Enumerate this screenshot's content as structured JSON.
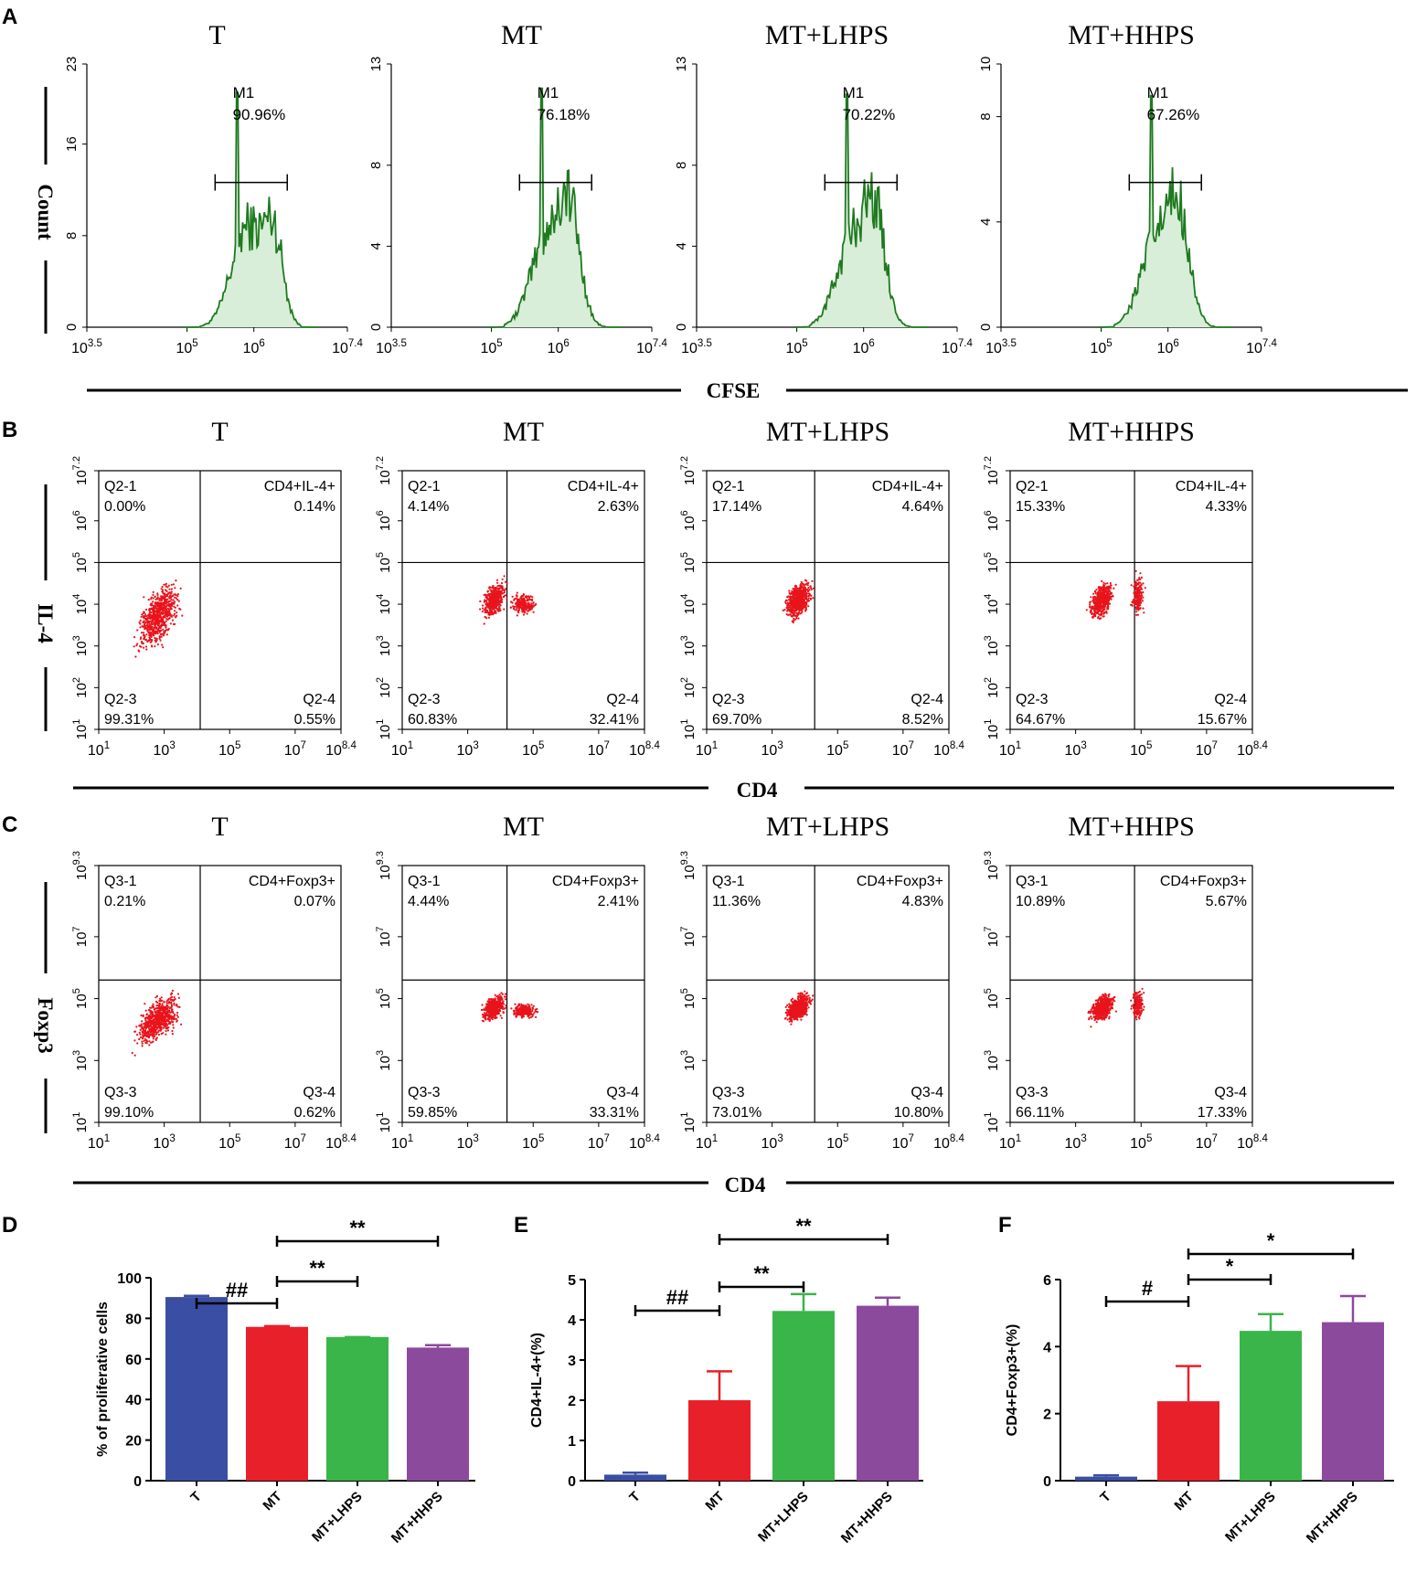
{
  "panel_letters": [
    "A",
    "B",
    "C",
    "D",
    "E",
    "F"
  ],
  "section_labels": {
    "A": "CFSE",
    "B": "CD4",
    "C": "CD4"
  },
  "side_labels": {
    "A": "Count",
    "B": "IL-4",
    "C": "Foxp3"
  },
  "colors": {
    "hist_line": "#1f7a1f",
    "hist_fill": "#d8eed8",
    "dots": "#e8141c",
    "bar_T": "#3a4fa3",
    "bar_MT": "#e8202a",
    "bar_LHPS": "#3ab54a",
    "bar_HHPS": "#8b4a9c"
  },
  "chart_data": [
    {
      "type": "histogram",
      "panel": "A",
      "groups": [
        {
          "title": "T",
          "gate": "M1",
          "percent": "90.96%",
          "yticks": [
            "0",
            "8",
            "16",
            "23"
          ],
          "ymax": 23,
          "peak": 20.5
        },
        {
          "title": "MT",
          "gate": "M1",
          "percent": "76.18%",
          "yticks": [
            "0",
            "4",
            "8",
            "13"
          ],
          "ymax": 13,
          "peak": 11.8
        },
        {
          "title": "MT+LHPS",
          "gate": "M1",
          "percent": "70.22%",
          "yticks": [
            "0",
            "4",
            "8",
            "13"
          ],
          "ymax": 13,
          "peak": 11.5
        },
        {
          "title": "MT+HHPS",
          "gate": "M1",
          "percent": "67.26%",
          "yticks": [
            "0",
            "4",
            "8",
            "10"
          ],
          "ymax": 10,
          "peak": 8.8
        }
      ],
      "xticks": [
        {
          "b": "10",
          "e": "3.5"
        },
        {
          "b": "10",
          "e": "5"
        },
        {
          "b": "10",
          "e": "6"
        },
        {
          "b": "10",
          "e": "7.4"
        }
      ],
      "xlabel": "CFSE",
      "ylabel": "Count"
    },
    {
      "type": "scatter",
      "panel": "B",
      "xlabel": "CD4",
      "ylabel": "IL-4",
      "yticks": [
        {
          "b": "10",
          "e": "1"
        },
        {
          "b": "10",
          "e": "2"
        },
        {
          "b": "10",
          "e": "3"
        },
        {
          "b": "10",
          "e": "4"
        },
        {
          "b": "10",
          "e": "5"
        },
        {
          "b": "10",
          "e": "6"
        },
        {
          "b": "10",
          "e": "7.2"
        }
      ],
      "xticks": [
        {
          "b": "10",
          "e": "1"
        },
        {
          "b": "10",
          "e": "3"
        },
        {
          "b": "10",
          "e": "5"
        },
        {
          "b": "10",
          "e": "7"
        },
        {
          "b": "10",
          "e": "8.4"
        }
      ],
      "groups": [
        {
          "title": "T",
          "q1": [
            "Q2-1",
            "0.00%"
          ],
          "q2": [
            "CD4+IL-4+",
            "0.14%"
          ],
          "q3": [
            "Q2-3",
            "99.31%"
          ],
          "q4": [
            "Q2-4",
            "0.55%"
          ]
        },
        {
          "title": "MT",
          "q1": [
            "Q2-1",
            "4.14%"
          ],
          "q2": [
            "CD4+IL-4+",
            "2.63%"
          ],
          "q3": [
            "Q2-3",
            "60.83%"
          ],
          "q4": [
            "Q2-4",
            "32.41%"
          ]
        },
        {
          "title": "MT+LHPS",
          "q1": [
            "Q2-1",
            "17.14%"
          ],
          "q2": [
            "CD4+IL-4+",
            "4.64%"
          ],
          "q3": [
            "Q2-3",
            "69.70%"
          ],
          "q4": [
            "Q2-4",
            "8.52%"
          ]
        },
        {
          "title": "MT+HHPS",
          "q1": [
            "Q2-1",
            "15.33%"
          ],
          "q2": [
            "CD4+IL-4+",
            "4.33%"
          ],
          "q3": [
            "Q2-3",
            "64.67%"
          ],
          "q4": [
            "Q2-4",
            "15.67%"
          ]
        }
      ]
    },
    {
      "type": "scatter",
      "panel": "C",
      "xlabel": "CD4",
      "ylabel": "Foxp3",
      "yticks": [
        {
          "b": "10",
          "e": "1"
        },
        {
          "b": "10",
          "e": "3"
        },
        {
          "b": "10",
          "e": "5"
        },
        {
          "b": "10",
          "e": "7"
        },
        {
          "b": "10",
          "e": "9.3"
        }
      ],
      "xticks": [
        {
          "b": "10",
          "e": "1"
        },
        {
          "b": "10",
          "e": "3"
        },
        {
          "b": "10",
          "e": "5"
        },
        {
          "b": "10",
          "e": "7"
        },
        {
          "b": "10",
          "e": "8.4"
        }
      ],
      "groups": [
        {
          "title": "T",
          "q1": [
            "Q3-1",
            "0.21%"
          ],
          "q2": [
            "CD4+Foxp3+",
            "0.07%"
          ],
          "q3": [
            "Q3-3",
            "99.10%"
          ],
          "q4": [
            "Q3-4",
            "0.62%"
          ]
        },
        {
          "title": "MT",
          "q1": [
            "Q3-1",
            "4.44%"
          ],
          "q2": [
            "CD4+Foxp3+",
            "2.41%"
          ],
          "q3": [
            "Q3-3",
            "59.85%"
          ],
          "q4": [
            "Q3-4",
            "33.31%"
          ]
        },
        {
          "title": "MT+LHPS",
          "q1": [
            "Q3-1",
            "11.36%"
          ],
          "q2": [
            "CD4+Foxp3+",
            "4.83%"
          ],
          "q3": [
            "Q3-3",
            "73.01%"
          ],
          "q4": [
            "Q3-4",
            "10.80%"
          ]
        },
        {
          "title": "MT+HHPS",
          "q1": [
            "Q3-1",
            "10.89%"
          ],
          "q2": [
            "CD4+Foxp3+",
            "5.67%"
          ],
          "q3": [
            "Q3-3",
            "66.11%"
          ],
          "q4": [
            "Q3-4",
            "17.33%"
          ]
        }
      ]
    },
    {
      "type": "bar",
      "panel": "D",
      "ylabel": "% of proliferative cells",
      "categories": [
        "T",
        "MT",
        "MT+LHPS",
        "MT+HHPS"
      ],
      "values": [
        90.5,
        75.8,
        70.8,
        65.6
      ],
      "errors": [
        0.6,
        0.4,
        0.0,
        1.2
      ],
      "ylim": [
        0,
        100
      ],
      "yticks": [
        "0",
        "20",
        "40",
        "60",
        "80",
        "100"
      ],
      "tickvals": [
        0,
        20,
        40,
        60,
        80,
        100
      ],
      "significance": [
        {
          "from": 0,
          "to": 1,
          "label": "##",
          "level": 0
        },
        {
          "from": 1,
          "to": 2,
          "label": "**",
          "level": 1
        },
        {
          "from": 1,
          "to": 3,
          "label": "**",
          "level": 2
        }
      ]
    },
    {
      "type": "bar",
      "panel": "E",
      "ylabel": "CD4+IL-4+(%)",
      "categories": [
        "T",
        "MT",
        "MT+LHPS",
        "MT+HHPS"
      ],
      "values": [
        0.15,
        2.0,
        4.22,
        4.35
      ],
      "errors": [
        0.05,
        0.72,
        0.42,
        0.2
      ],
      "ylim": [
        0,
        5
      ],
      "yticks": [
        "0",
        "1",
        "2",
        "3",
        "4",
        "5"
      ],
      "tickvals": [
        0,
        1,
        2,
        3,
        4,
        5
      ],
      "significance": [
        {
          "from": 0,
          "to": 1,
          "label": "##",
          "level": 0
        },
        {
          "from": 1,
          "to": 2,
          "label": "**",
          "level": 1
        },
        {
          "from": 1,
          "to": 3,
          "label": "**",
          "level": 2
        }
      ]
    },
    {
      "type": "bar",
      "panel": "F",
      "ylabel": "CD4+Foxp3+(%)",
      "categories": [
        "T",
        "MT",
        "MT+LHPS",
        "MT+HHPS"
      ],
      "values": [
        0.12,
        2.37,
        4.47,
        4.73
      ],
      "errors": [
        0.04,
        1.05,
        0.5,
        0.78
      ],
      "ylim": [
        0,
        6
      ],
      "yticks": [
        "0",
        "2",
        "4",
        "6"
      ],
      "tickvals": [
        0,
        2,
        4,
        6
      ],
      "significance": [
        {
          "from": 0,
          "to": 1,
          "label": "#",
          "level": 0
        },
        {
          "from": 1,
          "to": 2,
          "label": "*",
          "level": 1
        },
        {
          "from": 1,
          "to": 3,
          "label": "*",
          "level": 2
        }
      ]
    }
  ]
}
